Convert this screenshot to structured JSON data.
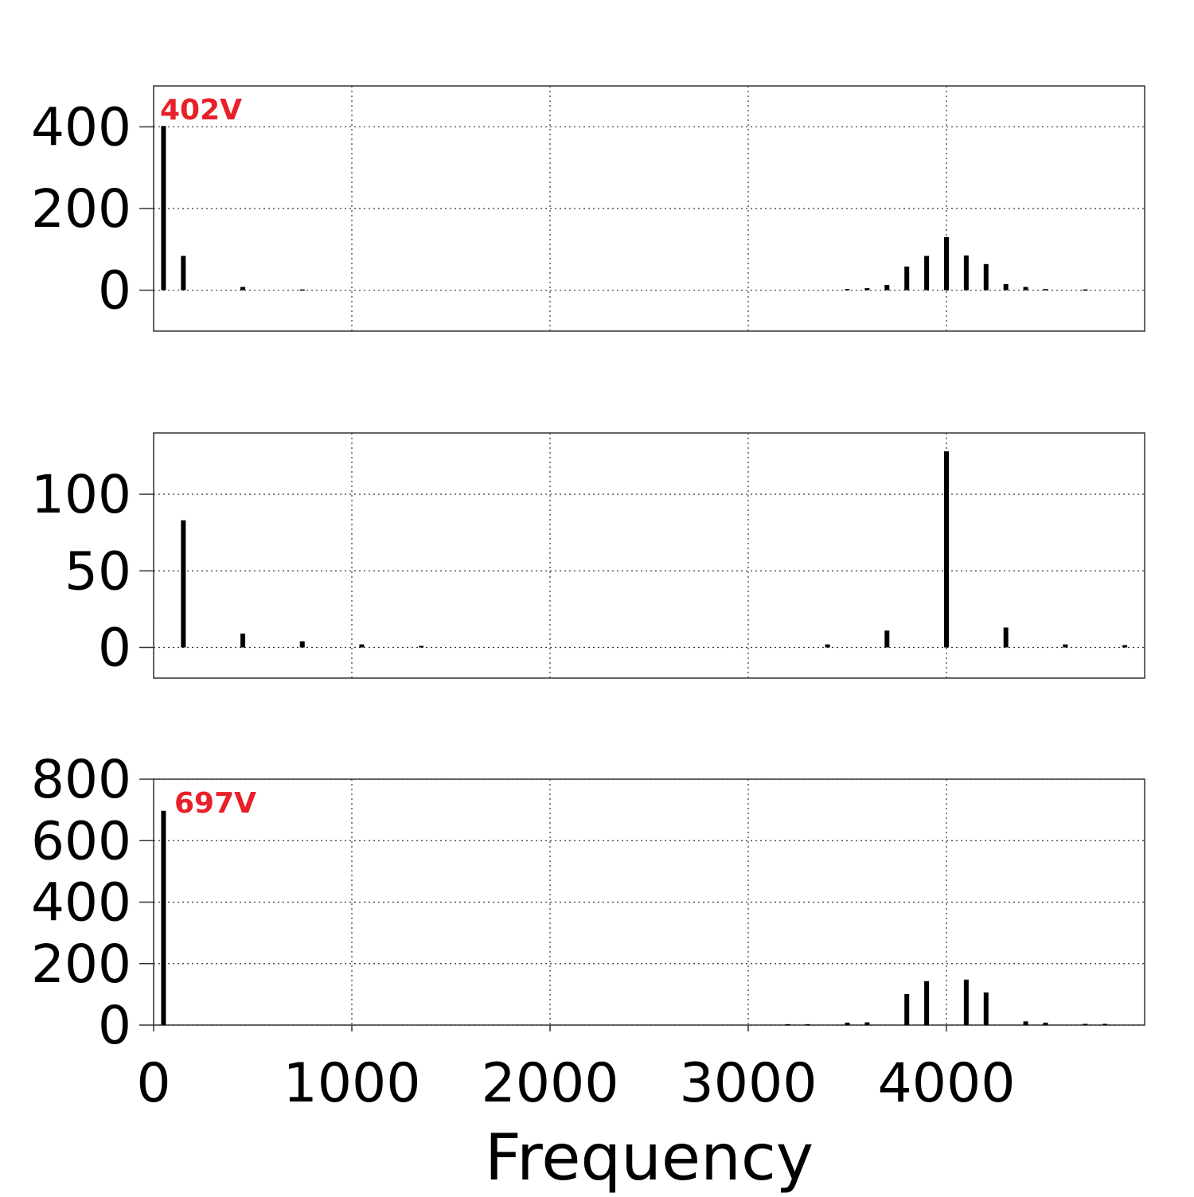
{
  "chart_data": [
    {
      "type": "bar",
      "color": "#000000",
      "grid": true,
      "xlim": [
        0,
        5000
      ],
      "xticks": [
        0,
        1000,
        2000,
        3000,
        4000
      ],
      "xtick_labels": false,
      "ylim": [
        -100,
        500
      ],
      "yticks": [
        0,
        200,
        400
      ],
      "annotation": "402V",
      "x": [
        50,
        150,
        450,
        750,
        3500,
        3600,
        3700,
        3800,
        3900,
        4000,
        4100,
        4200,
        4300,
        4400,
        4500,
        4700
      ],
      "values": [
        402,
        84,
        8,
        2,
        3,
        5,
        13,
        58,
        84,
        130,
        85,
        64,
        15,
        8,
        3,
        2
      ]
    },
    {
      "type": "bar",
      "color": "#000000",
      "grid": true,
      "xlim": [
        0,
        5000
      ],
      "xticks": [
        0,
        1000,
        2000,
        3000,
        4000
      ],
      "xtick_labels": false,
      "ylim": [
        -20,
        140
      ],
      "yticks": [
        0,
        50,
        100
      ],
      "x": [
        150,
        450,
        750,
        1050,
        1350,
        3400,
        3700,
        4000,
        4300,
        4600,
        4900
      ],
      "values": [
        83,
        9,
        4,
        2,
        1,
        2,
        11,
        128,
        13,
        2,
        1.5
      ]
    },
    {
      "type": "bar",
      "color": "#000000",
      "grid": true,
      "xlim": [
        0,
        5000
      ],
      "xticks": [
        0,
        1000,
        2000,
        3000,
        4000
      ],
      "xtick_labels": true,
      "ylim": [
        0,
        800
      ],
      "yticks": [
        0,
        200,
        400,
        600,
        800
      ],
      "annotation": "697V",
      "xlabel": "Frequency",
      "x": [
        50,
        3200,
        3300,
        3500,
        3600,
        3800,
        3900,
        4100,
        4200,
        4400,
        4500,
        4700,
        4800
      ],
      "values": [
        697,
        3,
        3,
        8,
        9,
        101,
        143,
        148,
        106,
        12,
        8,
        4,
        4
      ]
    }
  ]
}
